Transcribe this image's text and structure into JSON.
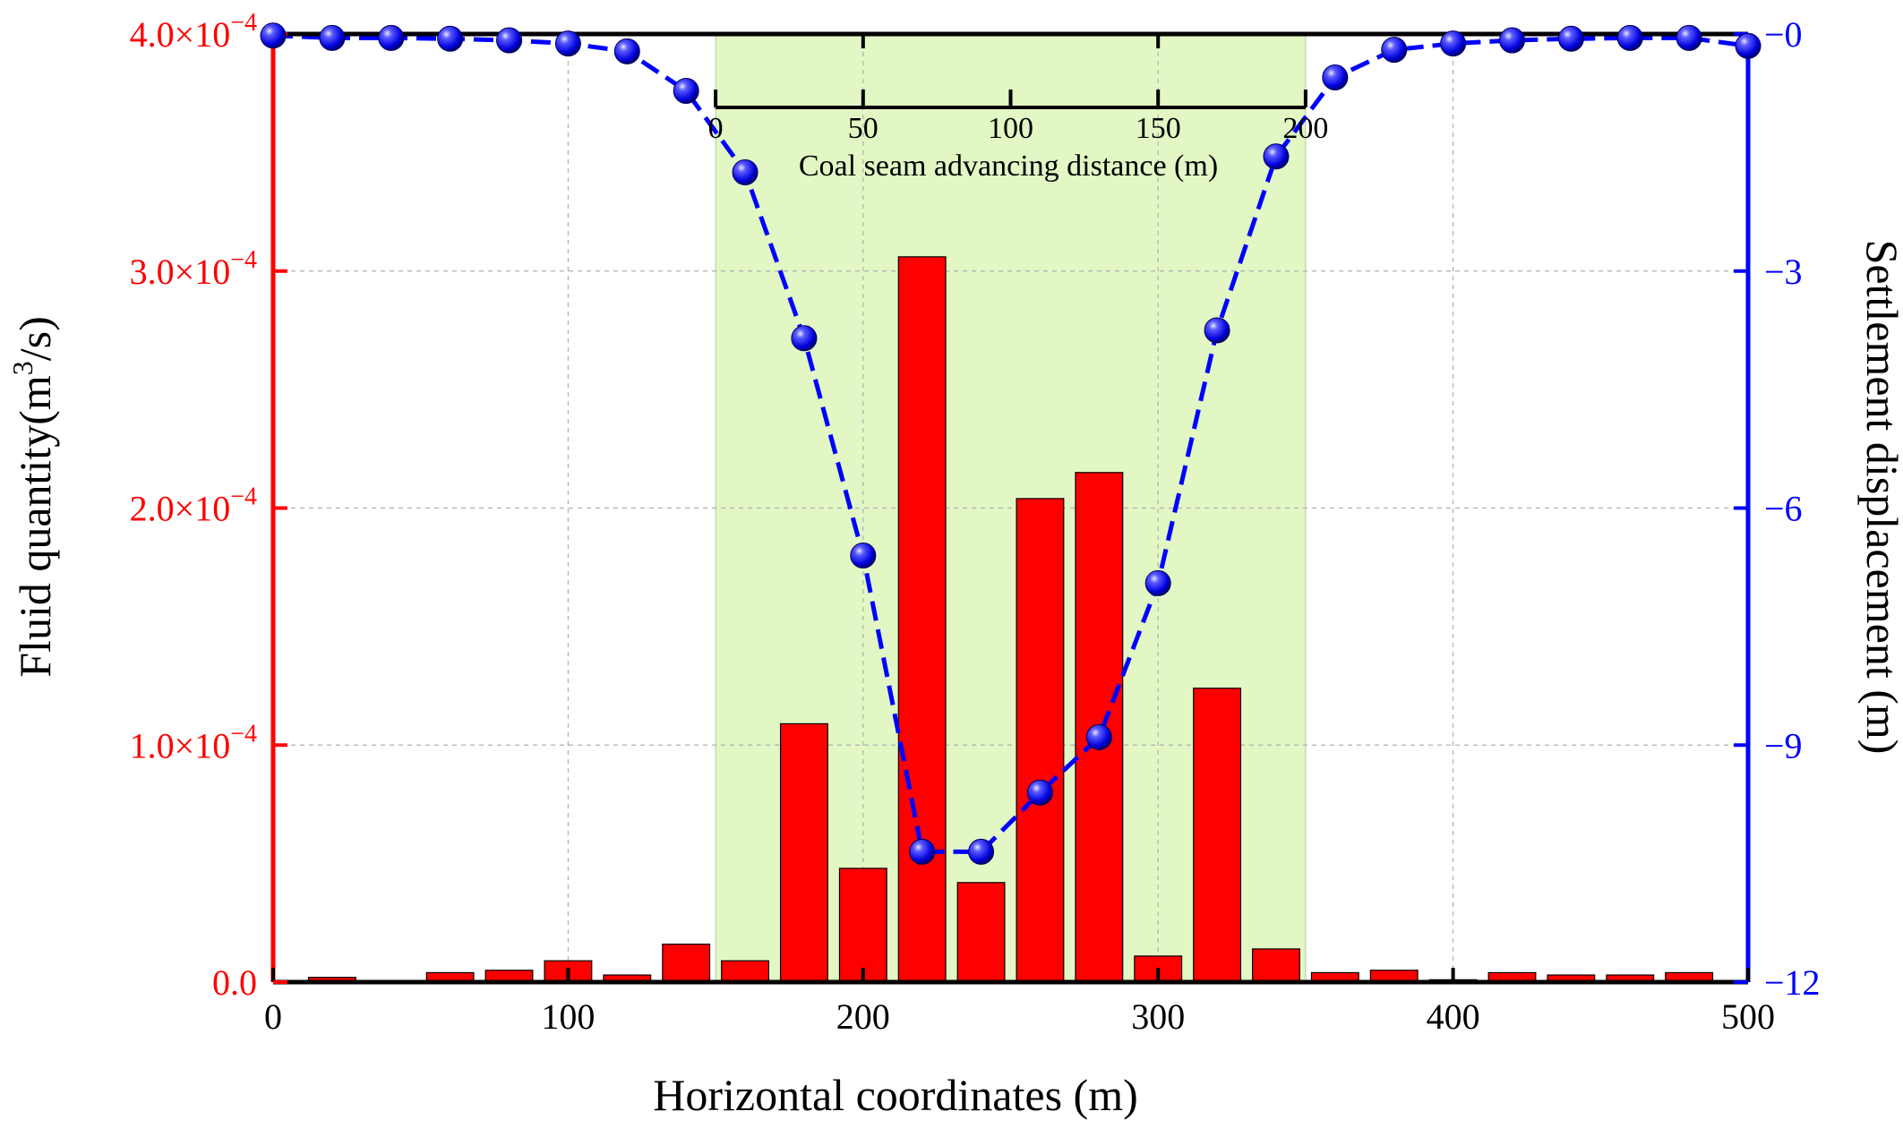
{
  "chart_data": {
    "type": "bar",
    "x_axis": {
      "label": "Horizontal coordinates (m)",
      "range": [
        0,
        500
      ],
      "ticks": [
        0,
        100,
        200,
        300,
        400,
        500
      ],
      "tick_labels": [
        "0",
        "100",
        "200",
        "300",
        "400",
        "500"
      ]
    },
    "top_axis": {
      "label": "Coal seam advancing distance (m)",
      "range": [
        0,
        200
      ],
      "data_span": [
        150,
        350
      ],
      "ticks": [
        0,
        50,
        100,
        150,
        200
      ],
      "tick_labels": [
        "0",
        "50",
        "100",
        "150",
        "200"
      ]
    },
    "y_left": {
      "label_main": "Fluid quantity(m",
      "label_sup": "3",
      "label_end": "/s)",
      "range": [
        0,
        0.0004
      ],
      "ticks": [
        0,
        0.0001,
        0.0002,
        0.0003,
        0.0004
      ],
      "tick_labels": [
        {
          "mant": "0.0",
          "exp": ""
        },
        {
          "mant": "1.0×10",
          "exp": "−4"
        },
        {
          "mant": "2.0×10",
          "exp": "−4"
        },
        {
          "mant": "3.0×10",
          "exp": "−4"
        },
        {
          "mant": "4.0×10",
          "exp": "−4"
        }
      ]
    },
    "y_right": {
      "label": "Settlement displacement (m)",
      "range": [
        -12,
        0
      ],
      "ticks": [
        0,
        -3,
        -6,
        -9,
        -12
      ],
      "tick_labels": [
        "−0",
        "−3",
        "−6",
        "−9",
        "−12"
      ]
    },
    "highlight_region": [
      150,
      350
    ],
    "series": [
      {
        "name": "Fluid quantity",
        "type": "bar",
        "axis": "left",
        "x": [
          20,
          40,
          60,
          80,
          100,
          120,
          140,
          160,
          180,
          200,
          220,
          240,
          260,
          280,
          300,
          320,
          340,
          360,
          380,
          400,
          420,
          440,
          460,
          480
        ],
        "values": [
          2e-06,
          3e-07,
          4e-06,
          5e-06,
          9e-06,
          3e-06,
          1.6e-05,
          9e-06,
          0.000109,
          4.8e-05,
          0.000306,
          4.2e-05,
          0.000204,
          0.000215,
          1.1e-05,
          0.000124,
          1.4e-05,
          4e-06,
          5e-06,
          1e-06,
          4e-06,
          3e-06,
          3e-06,
          4e-06
        ]
      },
      {
        "name": "Settlement displacement",
        "type": "line",
        "axis": "right",
        "x": [
          0,
          20,
          40,
          60,
          80,
          100,
          120,
          140,
          160,
          180,
          200,
          220,
          240,
          260,
          280,
          300,
          320,
          340,
          360,
          380,
          400,
          420,
          440,
          460,
          480,
          500
        ],
        "values": [
          -0.02,
          -0.05,
          -0.05,
          -0.06,
          -0.08,
          -0.12,
          -0.22,
          -0.72,
          -1.75,
          -3.85,
          -6.6,
          -10.35,
          -10.35,
          -9.6,
          -8.9,
          -6.95,
          -3.75,
          -1.55,
          -0.55,
          -0.2,
          -0.12,
          -0.08,
          -0.06,
          -0.05,
          -0.05,
          -0.15
        ]
      }
    ],
    "colors": {
      "bars": "#ff0000",
      "line": "#0000ff",
      "highlight": "#e2f7c4",
      "left_axis": "#ff0000",
      "right_axis": "#0000ff"
    }
  }
}
